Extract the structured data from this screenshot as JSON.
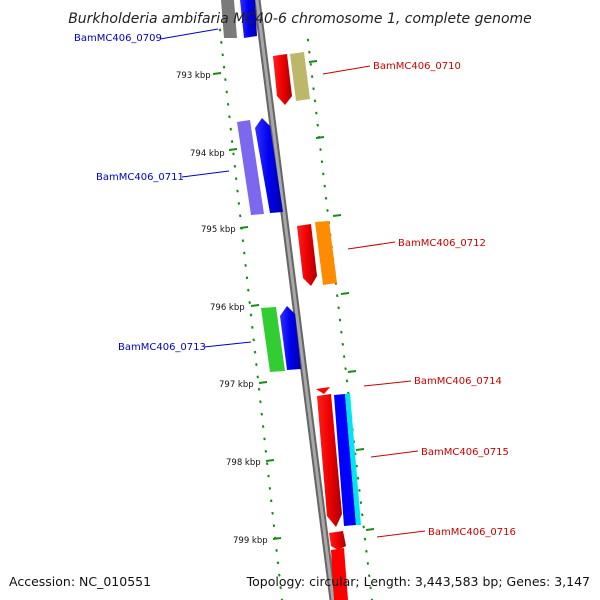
{
  "title": "Burkholderia ambifaria MC40-6 chromosome 1, complete genome",
  "footer": {
    "accession": "Accession: NC_010551",
    "summary": "Topology: circular; Length: 3,443,583 bp; Genes: 3,147"
  },
  "colors": {
    "reverse_label": "#0000cc",
    "forward_label": "#cc0000",
    "backbone": "#888888",
    "ticks": "#1a8a1a"
  },
  "scale": {
    "unit": "kbp",
    "first_kbp": 793,
    "last_kbp": 799
  },
  "ticks": [
    {
      "kbp": 793,
      "label": "793 kbp"
    },
    {
      "kbp": 794,
      "label": "794 kbp"
    },
    {
      "kbp": 795,
      "label": "795 kbp"
    },
    {
      "kbp": 796,
      "label": "796 kbp"
    },
    {
      "kbp": 797,
      "label": "797 kbp"
    },
    {
      "kbp": 798,
      "label": "798 kbp"
    },
    {
      "kbp": 799,
      "label": "799 kbp"
    }
  ],
  "genes": [
    {
      "id": "BamMC406_0709",
      "strand": "reverse",
      "color": "#0000ff",
      "companion": "#808080"
    },
    {
      "id": "BamMC406_0710",
      "strand": "forward",
      "color": "#ff0000",
      "companion": "#bdb76b"
    },
    {
      "id": "BamMC406_0711",
      "strand": "reverse",
      "color": "#0000ff",
      "companion": "#7b68ee"
    },
    {
      "id": "BamMC406_0712",
      "strand": "forward",
      "color": "#ff0000",
      "companion": "#ff8c00"
    },
    {
      "id": "BamMC406_0713",
      "strand": "reverse",
      "color": "#0000ff",
      "companion": "#32cd32"
    },
    {
      "id": "BamMC406_0714",
      "strand": "forward",
      "color": "#ff0000",
      "companion": ""
    },
    {
      "id": "BamMC406_0715",
      "strand": "forward",
      "color": "#ff0000",
      "companion": "#0000ff"
    },
    {
      "id": "BamMC406_0716",
      "strand": "forward",
      "color": "#ff0000",
      "companion": ""
    }
  ]
}
